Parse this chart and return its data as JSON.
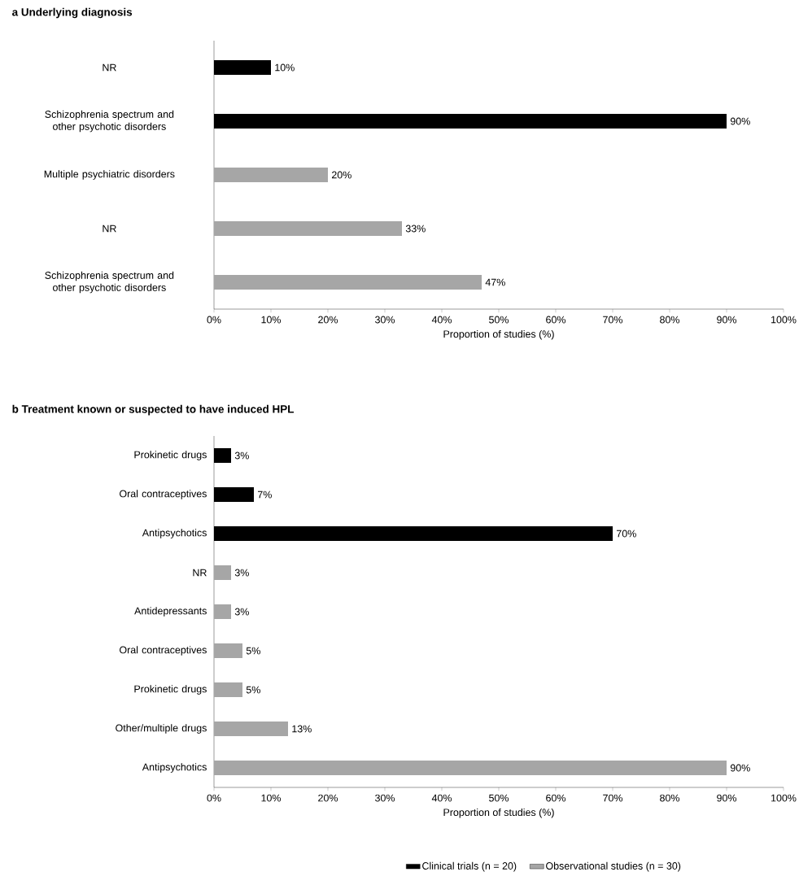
{
  "chart_data": [
    {
      "type": "bar",
      "orientation": "horizontal",
      "title": "a Underlying diagnosis",
      "xlabel": "Proportion of studies (%)",
      "categories": [
        "NR",
        "Schizophrenia spectrum and other psychotic disorders",
        "Multiple psychiatric disorders",
        "NR",
        "Schizophrenia spectrum and other psychotic disorders"
      ],
      "series": [
        {
          "color": "#000000",
          "values": [
            10,
            90,
            null,
            null,
            null
          ],
          "value_labels": [
            "10%",
            "90%",
            null,
            null,
            null
          ]
        },
        {
          "color": "#a6a6a6",
          "values": [
            null,
            null,
            20,
            33,
            47
          ],
          "value_labels": [
            null,
            null,
            "20%",
            "33%",
            "47%"
          ]
        }
      ],
      "xlim": [
        0,
        100
      ],
      "xticks": [
        {
          "value": 0,
          "label": "0%"
        },
        {
          "value": 10,
          "label": "10%"
        },
        {
          "value": 20,
          "label": "20%"
        },
        {
          "value": 30,
          "label": "30%"
        },
        {
          "value": 40,
          "label": "40%"
        },
        {
          "value": 50,
          "label": "50%"
        },
        {
          "value": 60,
          "label": "60%"
        },
        {
          "value": 70,
          "label": "70%"
        },
        {
          "value": 80,
          "label": "80%"
        },
        {
          "value": 90,
          "label": "90%"
        },
        {
          "value": 100,
          "label": "100%"
        }
      ]
    },
    {
      "type": "bar",
      "orientation": "horizontal",
      "title": "b Treatment known or suspected to have induced HPL",
      "xlabel": "Proportion of studies (%)",
      "categories": [
        "Prokinetic drugs",
        "Oral contraceptives",
        "Antipsychotics",
        "NR",
        "Antidepressants",
        "Oral contraceptives",
        "Prokinetic drugs",
        "Other/multiple drugs",
        "Antipsychotics"
      ],
      "series": [
        {
          "name": "Clinical trials (n = 20)",
          "color": "#000000",
          "values": [
            3,
            7,
            70,
            null,
            null,
            null,
            null,
            null,
            null
          ],
          "value_labels": [
            "3%",
            "7%",
            "70%",
            null,
            null,
            null,
            null,
            null,
            null
          ]
        },
        {
          "name": "Observational studies (n = 30)",
          "color": "#a6a6a6",
          "values": [
            null,
            null,
            null,
            3,
            3,
            5,
            5,
            13,
            90
          ],
          "value_labels": [
            null,
            null,
            null,
            "3%",
            "3%",
            "5%",
            "5%",
            "13%",
            "90%"
          ]
        }
      ],
      "xlim": [
        0,
        100
      ],
      "xticks": [
        {
          "value": 0,
          "label": "0%"
        },
        {
          "value": 10,
          "label": "10%"
        },
        {
          "value": 20,
          "label": "20%"
        },
        {
          "value": 30,
          "label": "30%"
        },
        {
          "value": 40,
          "label": "40%"
        },
        {
          "value": 50,
          "label": "50%"
        },
        {
          "value": 60,
          "label": "60%"
        },
        {
          "value": 70,
          "label": "70%"
        },
        {
          "value": 80,
          "label": "80%"
        },
        {
          "value": 90,
          "label": "90%"
        },
        {
          "value": 100,
          "label": "100%"
        }
      ],
      "legend": "bottom"
    }
  ]
}
